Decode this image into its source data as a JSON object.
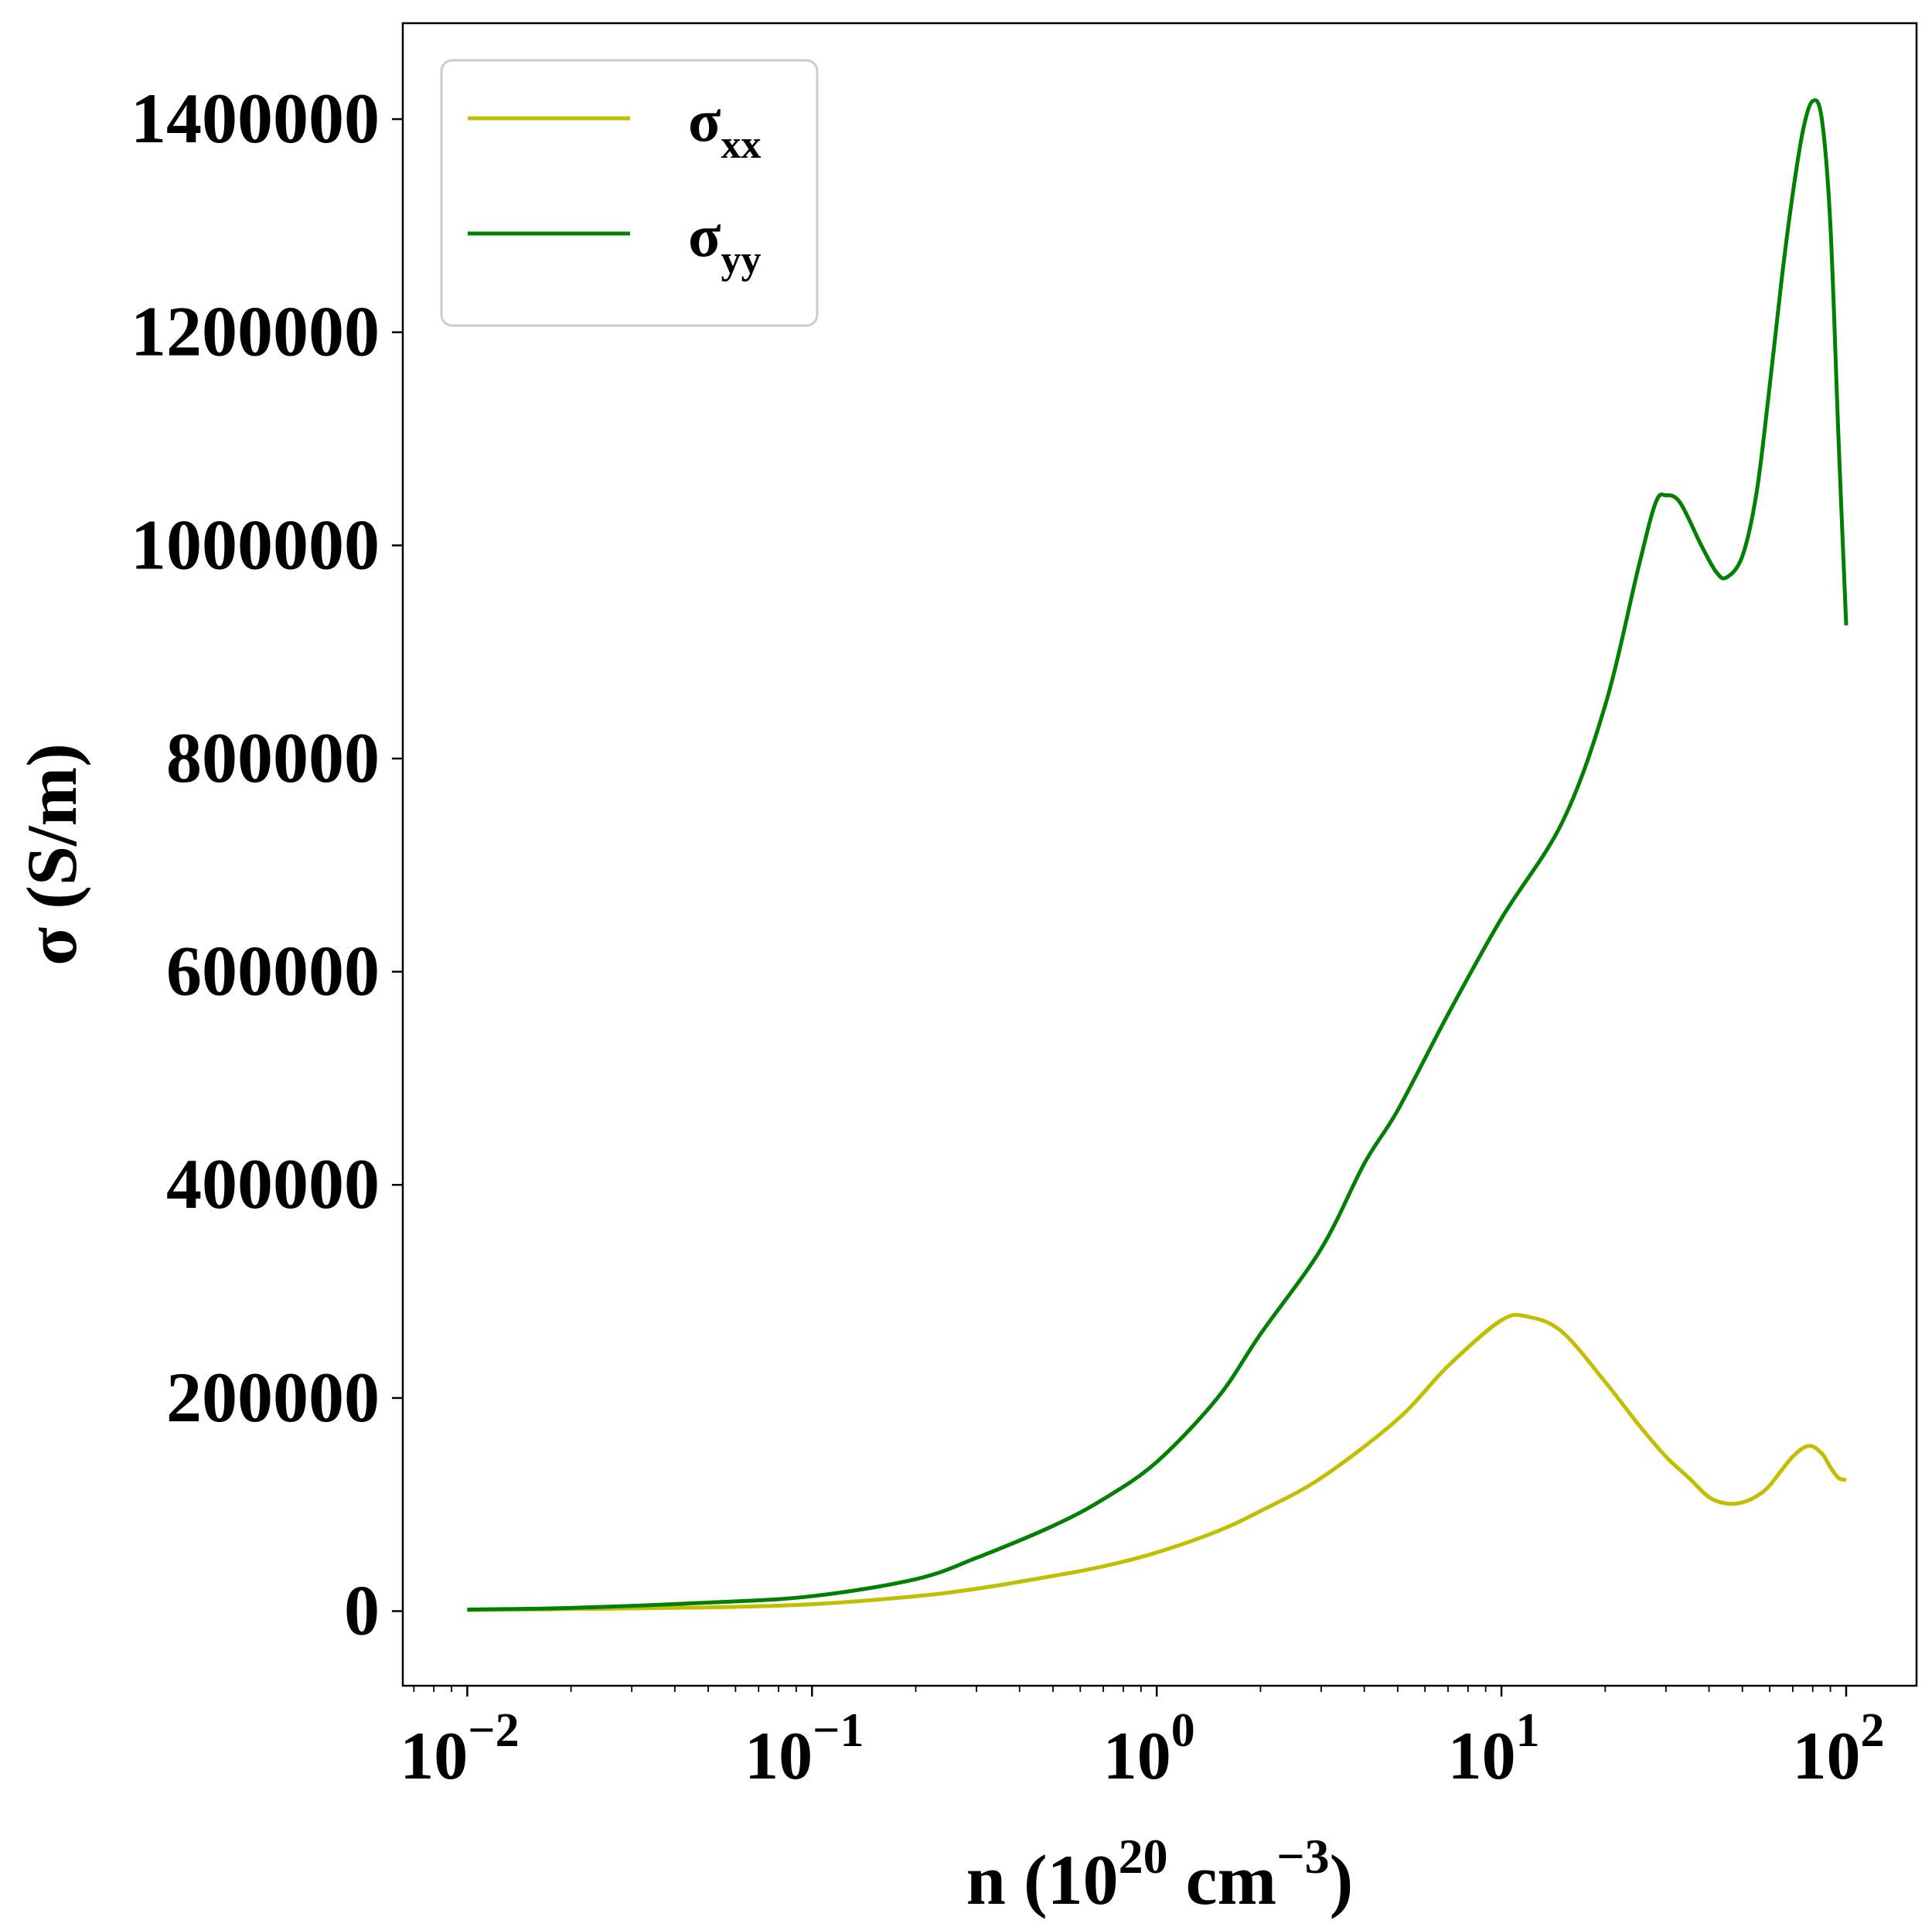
{
  "chart_data": {
    "type": "line",
    "title": "",
    "xlabel": {
      "prefix": "n (10",
      "sup1": "20",
      "mid": " cm",
      "sup2": "−3",
      "suffix": ")"
    },
    "ylabel": "σ (S/m)",
    "xscale": "log",
    "xlim": [
      0.0065,
      160
    ],
    "ylim": [
      -70000,
      1490000
    ],
    "grid": false,
    "legend_position": "top-left",
    "x_ticks": [
      {
        "value": 0.01,
        "base": "10",
        "exp": "−2"
      },
      {
        "value": 0.1,
        "base": "10",
        "exp": "−1"
      },
      {
        "value": 1,
        "base": "10",
        "exp": "0"
      },
      {
        "value": 10,
        "base": "10",
        "exp": "1"
      },
      {
        "value": 100,
        "base": "10",
        "exp": "2"
      }
    ],
    "y_ticks": [
      {
        "value": 0,
        "label": "0"
      },
      {
        "value": 200000,
        "label": "200000"
      },
      {
        "value": 400000,
        "label": "400000"
      },
      {
        "value": 600000,
        "label": "600000"
      },
      {
        "value": 800000,
        "label": "800000"
      },
      {
        "value": 1000000,
        "label": "1000000"
      },
      {
        "value": 1200000,
        "label": "1200000"
      },
      {
        "value": 1400000,
        "label": "1400000"
      }
    ],
    "series": [
      {
        "name": "σxx",
        "name_base": "σ",
        "name_sub": "xx",
        "color": "#bfbf00",
        "points": [
          [
            0.01,
            1000
          ],
          [
            0.02,
            2000
          ],
          [
            0.05,
            3500
          ],
          [
            0.1,
            6500
          ],
          [
            0.2,
            14000
          ],
          [
            0.3,
            21000
          ],
          [
            0.5,
            33000
          ],
          [
            0.7,
            42000
          ],
          [
            1.0,
            55000
          ],
          [
            1.5,
            75000
          ],
          [
            2.0,
            94000
          ],
          [
            3.0,
            125000
          ],
          [
            5.0,
            180000
          ],
          [
            7.0,
            230000
          ],
          [
            10.0,
            273000
          ],
          [
            12.0,
            276000
          ],
          [
            15.0,
            262000
          ],
          [
            20.0,
            215000
          ],
          [
            25.0,
            175000
          ],
          [
            30.0,
            145000
          ],
          [
            35.0,
            125000
          ],
          [
            40.0,
            107000
          ],
          [
            45.0,
            101000
          ],
          [
            50.0,
            102000
          ],
          [
            55.0,
            108000
          ],
          [
            60.0,
            118000
          ],
          [
            70.0,
            145000
          ],
          [
            78.0,
            155000
          ],
          [
            85.0,
            148000
          ],
          [
            90.0,
            135000
          ],
          [
            95.0,
            125000
          ],
          [
            100.0,
            123000
          ]
        ]
      },
      {
        "name": "σyy",
        "name_base": "σ",
        "name_sub": "yy",
        "color": "#007f00",
        "points": [
          [
            0.01,
            1500
          ],
          [
            0.02,
            3000
          ],
          [
            0.05,
            8000
          ],
          [
            0.1,
            14000
          ],
          [
            0.2,
            30000
          ],
          [
            0.3,
            50000
          ],
          [
            0.5,
            80000
          ],
          [
            0.7,
            105000
          ],
          [
            1.0,
            140000
          ],
          [
            1.5,
            200000
          ],
          [
            2.0,
            260000
          ],
          [
            3.0,
            340000
          ],
          [
            4.0,
            420000
          ],
          [
            5.0,
            470000
          ],
          [
            7.0,
            560000
          ],
          [
            10.0,
            650000
          ],
          [
            15.0,
            740000
          ],
          [
            20.0,
            850000
          ],
          [
            25.0,
            980000
          ],
          [
            28.0,
            1040000
          ],
          [
            30.0,
            1047000
          ],
          [
            33.0,
            1040000
          ],
          [
            38.0,
            1000000
          ],
          [
            42.0,
            975000
          ],
          [
            45.0,
            970000
          ],
          [
            50.0,
            990000
          ],
          [
            55.0,
            1050000
          ],
          [
            60.0,
            1150000
          ],
          [
            65.0,
            1250000
          ],
          [
            70.0,
            1330000
          ],
          [
            75.0,
            1390000
          ],
          [
            80.0,
            1417000
          ],
          [
            85.0,
            1400000
          ],
          [
            90.0,
            1300000
          ],
          [
            95.0,
            1100000
          ],
          [
            100.0,
            925000
          ]
        ]
      }
    ]
  }
}
